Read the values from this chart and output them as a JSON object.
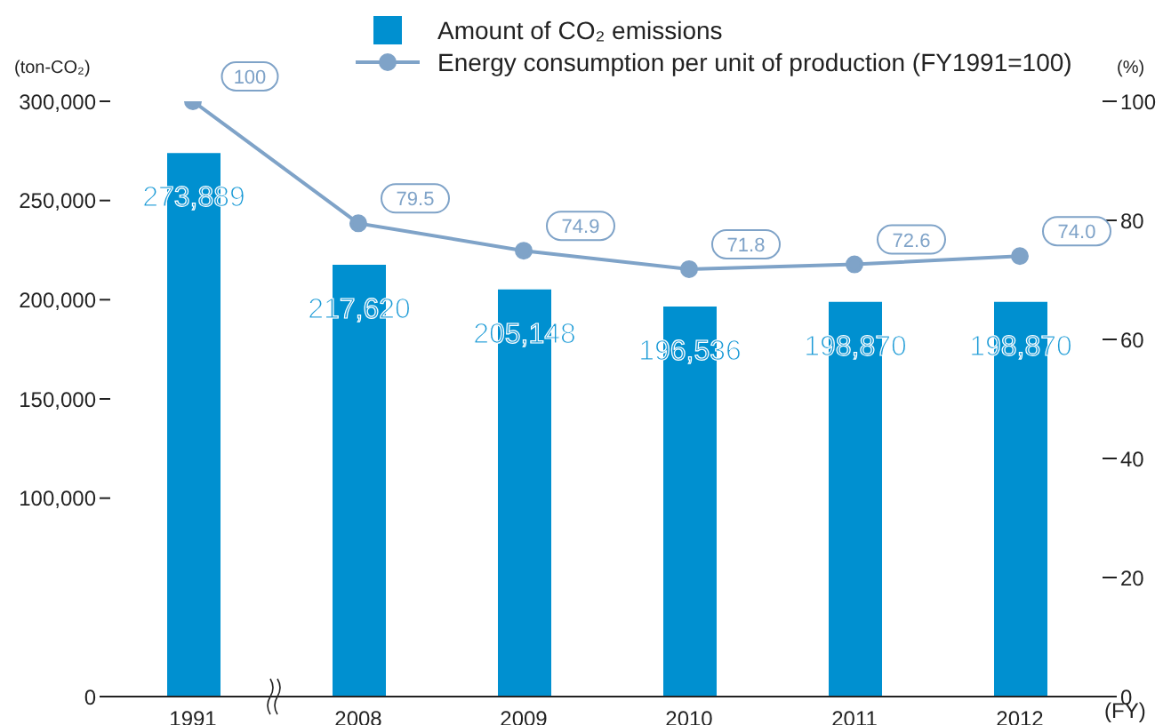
{
  "chart_data": {
    "type": "bar",
    "categories": [
      "1991",
      "2008",
      "2009",
      "2010",
      "2011",
      "2012"
    ],
    "xlabel": "(FY)",
    "ylabel": "(ton-CO₂)",
    "y2label": "(%)",
    "series": [
      {
        "name": "Amount of CO₂ emissions",
        "color": "#0090d0",
        "values": [
          273889,
          217620,
          205148,
          196536,
          198870,
          198870
        ],
        "value_labels": [
          "273,889",
          "217,620",
          "205,148",
          "196,536",
          "198,870",
          "198,870"
        ]
      },
      {
        "name": "Energy consumption per unit of production (FY1991=100)",
        "type": "line",
        "axis": "y2",
        "color": "#7fa3c8",
        "values": [
          100,
          79.5,
          74.9,
          71.8,
          72.6,
          74.0
        ],
        "value_labels": [
          "100",
          "79.5",
          "74.9",
          "71.8",
          "72.6",
          "74.0"
        ]
      }
    ],
    "ylim": [
      0,
      300000
    ],
    "yticks": [
      {
        "value": 0,
        "label": "0"
      },
      {
        "value": 100000,
        "label": "100,000"
      },
      {
        "value": 150000,
        "label": "150,000"
      },
      {
        "value": 200000,
        "label": "200,000"
      },
      {
        "value": 250000,
        "label": "250,000"
      },
      {
        "value": 300000,
        "label": "300,000"
      }
    ],
    "y2lim": [
      0,
      100
    ],
    "y2ticks": [
      0,
      20,
      40,
      60,
      80,
      100
    ],
    "marker": "circle",
    "line_style": "solid",
    "legend": "top",
    "grid": false
  }
}
